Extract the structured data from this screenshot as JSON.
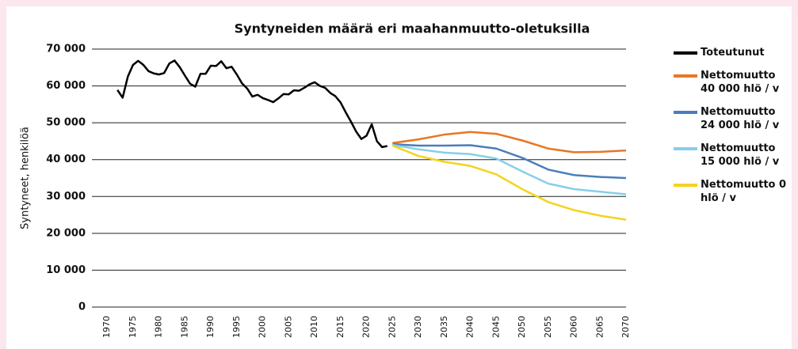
{
  "chart_data": {
    "type": "line",
    "title": "Syntyneiden määrä eri maahanmuutto-oletuksilla",
    "y_label": "Syntyneet, henkilöä",
    "xlim": [
      1968,
      2070
    ],
    "ylim": [
      0,
      70000
    ],
    "xticks": [
      1970,
      1975,
      1980,
      1985,
      1990,
      1995,
      2000,
      2005,
      2010,
      2015,
      2020,
      2025,
      2030,
      2035,
      2040,
      2045,
      2050,
      2055,
      2060,
      2065,
      2070
    ],
    "yticks": [
      {
        "value": 0,
        "label": "0"
      },
      {
        "value": 10000,
        "label": "10 000"
      },
      {
        "value": 20000,
        "label": "20 000"
      },
      {
        "value": 30000,
        "label": "30 000"
      },
      {
        "value": 40000,
        "label": "40 000"
      },
      {
        "value": 50000,
        "label": "50 000"
      },
      {
        "value": 60000,
        "label": "60 000"
      },
      {
        "value": 70000,
        "label": "70 000"
      }
    ],
    "grid": true,
    "legend": "right",
    "series": [
      {
        "name": "Toteutunut",
        "color": "#000000",
        "x": [
          1972,
          1973,
          1974,
          1975,
          1976,
          1977,
          1978,
          1979,
          1980,
          1981,
          1982,
          1983,
          1984,
          1985,
          1986,
          1987,
          1988,
          1989,
          1990,
          1991,
          1992,
          1993,
          1994,
          1995,
          1996,
          1997,
          1998,
          1999,
          2000,
          2001,
          2002,
          2003,
          2004,
          2005,
          2006,
          2007,
          2008,
          2009,
          2010,
          2011,
          2012,
          2013,
          2014,
          2015,
          2016,
          2017,
          2018,
          2019,
          2020,
          2021,
          2022,
          2023,
          2024
        ],
        "values": [
          58900,
          56800,
          62500,
          65700,
          66800,
          65700,
          64000,
          63400,
          63100,
          63500,
          66100,
          66900,
          65100,
          62800,
          60600,
          59800,
          63300,
          63300,
          65500,
          65400,
          66700,
          64800,
          65200,
          63100,
          60700,
          59300,
          57100,
          57600,
          56700,
          56200,
          55600,
          56600,
          57800,
          57700,
          58800,
          58700,
          59500,
          60400,
          61000,
          60000,
          59500,
          58100,
          57200,
          55500,
          52800,
          50300,
          47600,
          45600,
          46500,
          49600,
          45000,
          43400,
          43700
        ]
      },
      {
        "name": "Nettomuutto 40 000 hlö / v",
        "color": "#e87722",
        "x": [
          2025,
          2030,
          2035,
          2040,
          2045,
          2050,
          2055,
          2060,
          2065,
          2070
        ],
        "values": [
          44500,
          45500,
          46800,
          47500,
          47000,
          45200,
          43000,
          42000,
          42100,
          42500
        ]
      },
      {
        "name": "Nettomuutto 24 000 hlö / v",
        "color": "#4a7ebb",
        "x": [
          2025,
          2030,
          2035,
          2040,
          2045,
          2050,
          2055,
          2060,
          2065,
          2070
        ],
        "values": [
          44200,
          43800,
          43800,
          43900,
          43000,
          40500,
          37300,
          35800,
          35300,
          35000
        ]
      },
      {
        "name": "Nettomuutto 15 000 hlö / v",
        "color": "#86cfe8",
        "x": [
          2025,
          2030,
          2035,
          2040,
          2045,
          2050,
          2055,
          2060,
          2065,
          2070
        ],
        "values": [
          44000,
          42800,
          41900,
          41500,
          40300,
          36800,
          33500,
          32000,
          31300,
          30600
        ]
      },
      {
        "name": "Nettomuutto 0 hlö / v",
        "color": "#f5d31c",
        "x": [
          2025,
          2030,
          2035,
          2040,
          2045,
          2050,
          2055,
          2060,
          2065,
          2070
        ],
        "values": [
          43800,
          41000,
          39400,
          38300,
          36000,
          32000,
          28500,
          26300,
          24800,
          23700
        ]
      }
    ]
  }
}
